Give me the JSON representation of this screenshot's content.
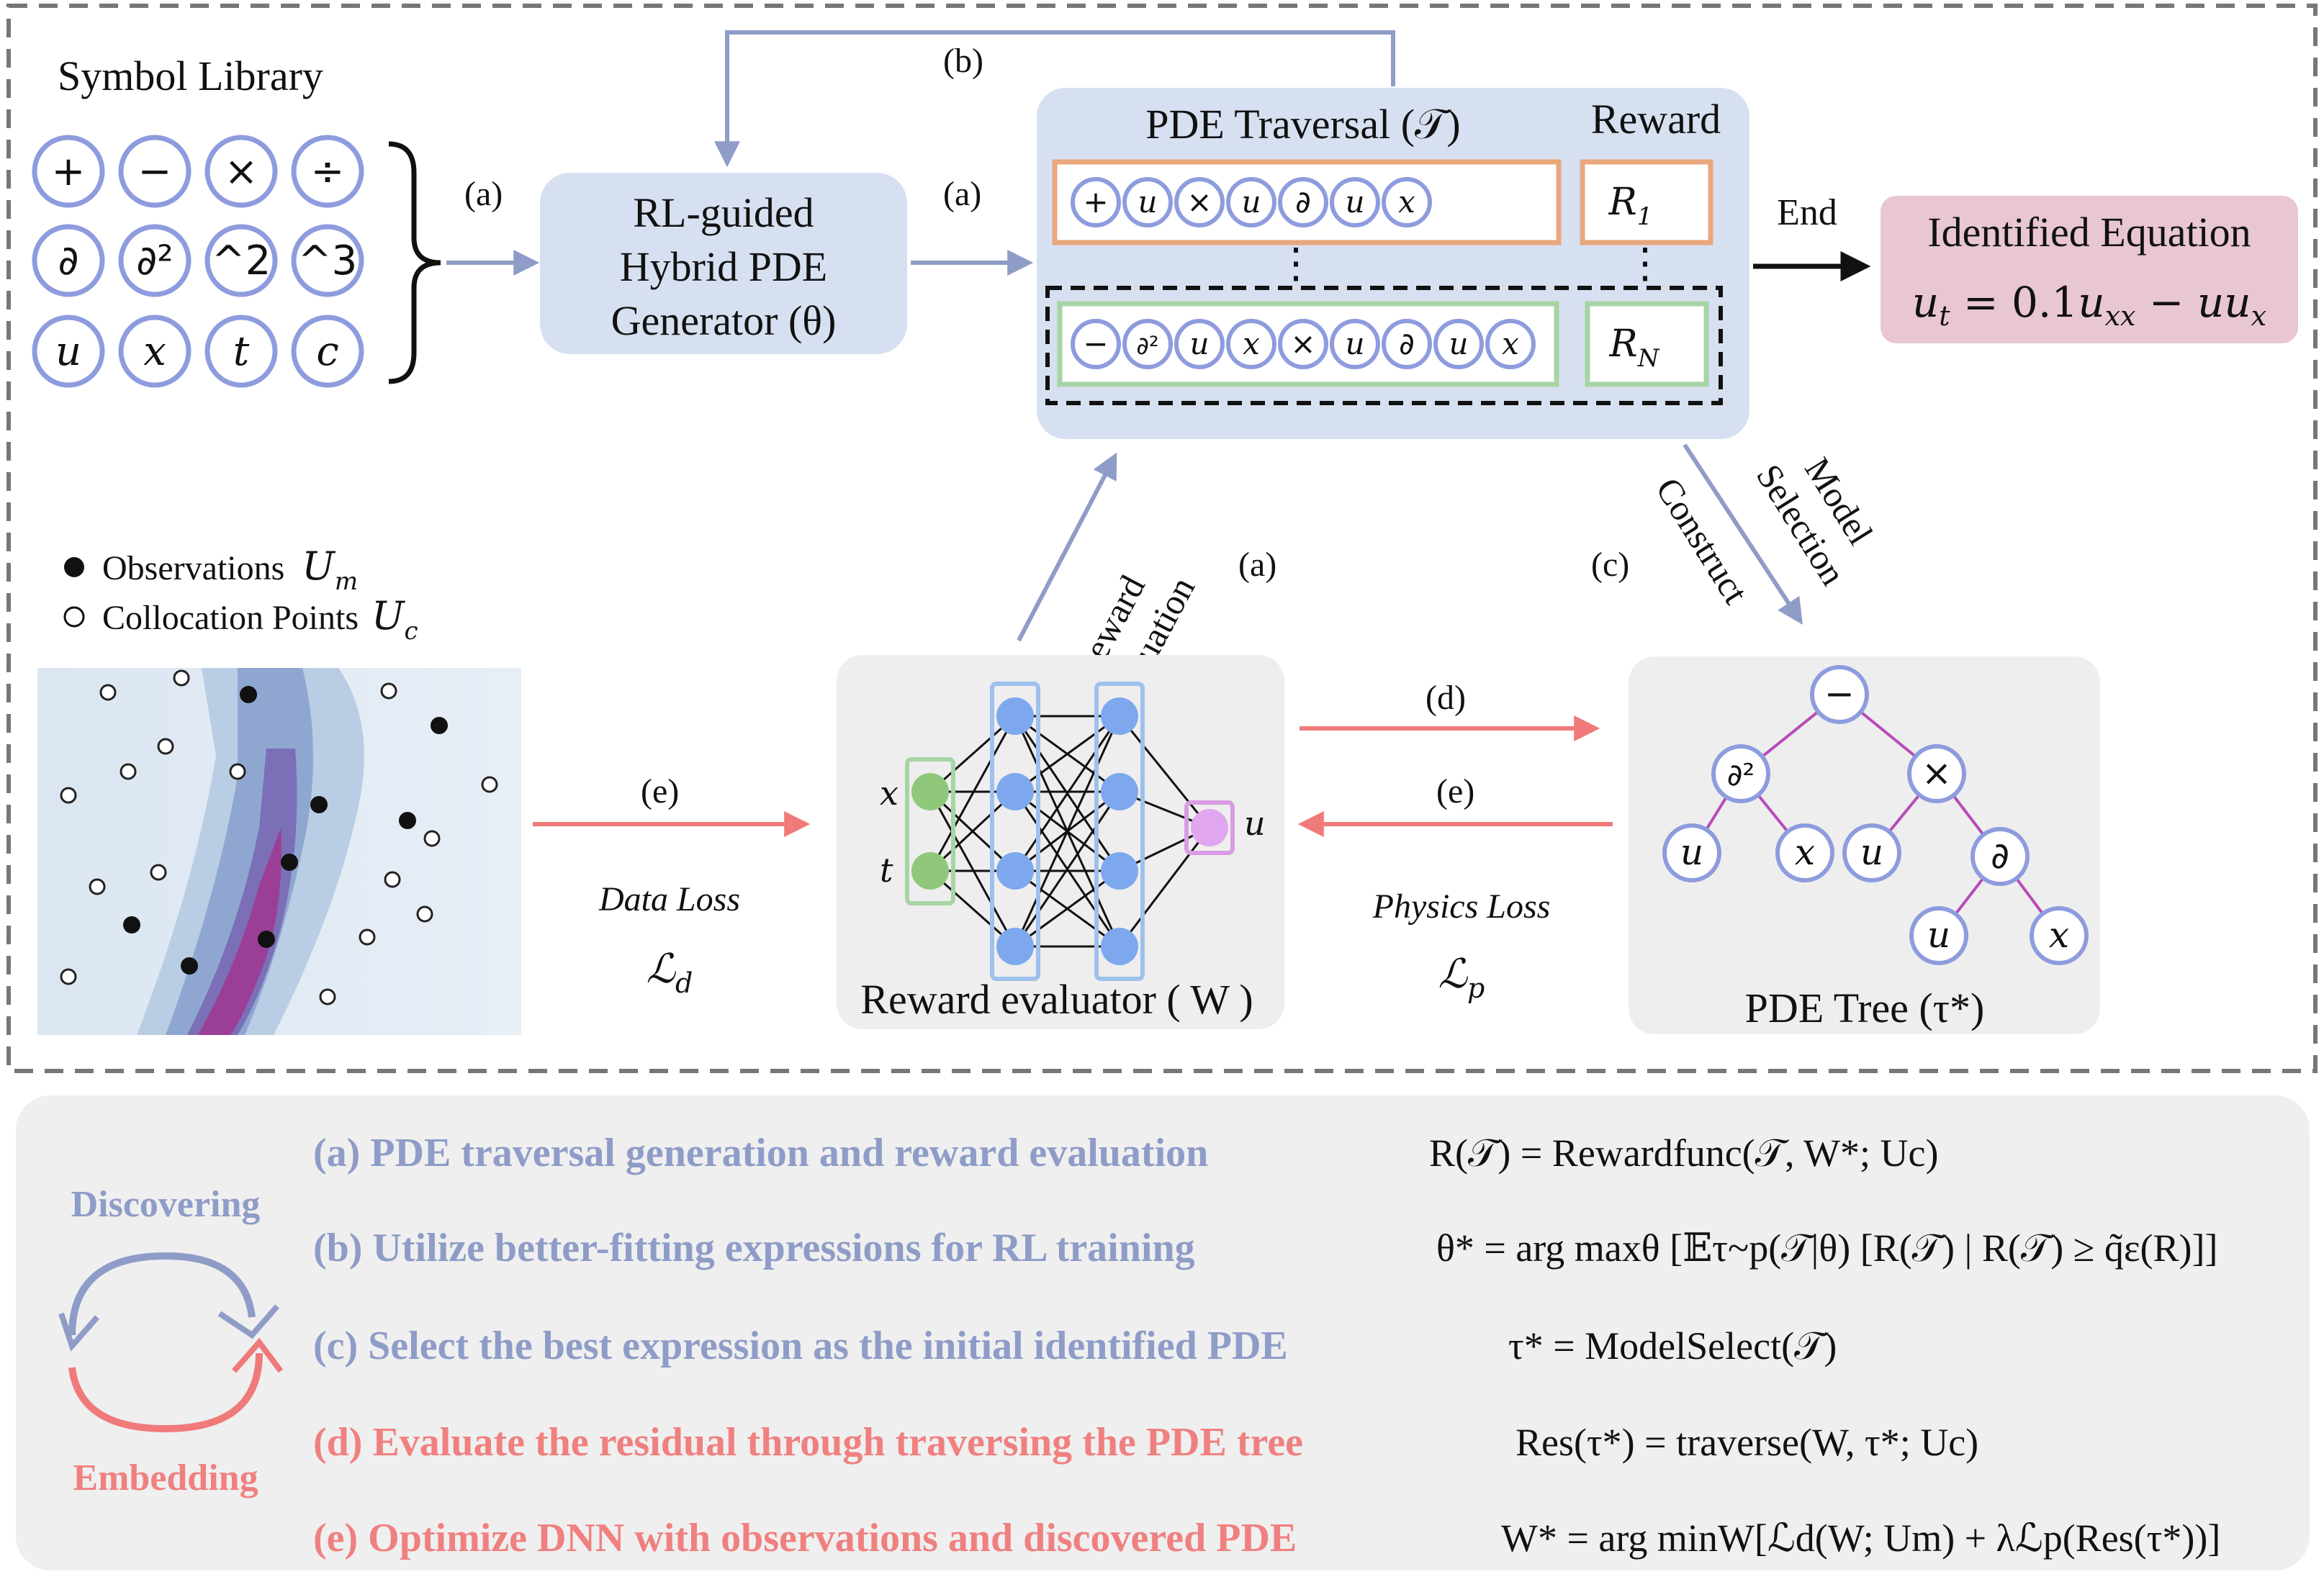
{
  "symbol_library": {
    "title": "Symbol Library",
    "symbols": [
      "+",
      "−",
      "×",
      "÷",
      "∂",
      "∂²",
      "^2",
      "^3",
      "u",
      "x",
      "t",
      "c"
    ]
  },
  "generator": {
    "line1": "RL-guided",
    "line2": "Hybrid PDE",
    "line3": "Generator (θ)"
  },
  "labels": {
    "a": "(a)",
    "b": "(b)",
    "c": "(c)",
    "d": "(d)",
    "e": "(e)",
    "end": "End",
    "reward_eval_1": "Reward",
    "reward_eval_2": "Evaluation",
    "model_sel_1": "Model",
    "model_sel_2": "Selection",
    "construct": "Construct",
    "data_loss": "Data Loss",
    "data_loss_sym": "ℒd",
    "physics_loss": "Physics Loss",
    "physics_loss_sym": "ℒp"
  },
  "traversal": {
    "title": "PDE Traversal (𝒯)",
    "reward_title": "Reward",
    "seq1": [
      "+",
      "u",
      "×",
      "u",
      "∂",
      "u",
      "x"
    ],
    "seq2": [
      "−",
      "∂²",
      "u",
      "x",
      "×",
      "u",
      "∂",
      "u",
      "x"
    ],
    "r1": "R1",
    "rn": "RN",
    "r1_main": "R",
    "r1_sub": "1",
    "rn_main": "R",
    "rn_sub": "N"
  },
  "identified": {
    "title": "Identified Equation",
    "equation": "ut = 0.1uxx − uux"
  },
  "observations": {
    "obs_label": "Observations",
    "obs_sym": "Um",
    "col_label": "Collocation Points",
    "col_sym": "Uc"
  },
  "evaluator": {
    "title": "Reward evaluator ( W )",
    "in_x": "x",
    "in_t": "t",
    "out_u": "u"
  },
  "tree": {
    "title": "PDE Tree (τ*)",
    "nodes": [
      "−",
      "∂²",
      "×",
      "u",
      "x",
      "u",
      "∂",
      "u",
      "x"
    ]
  },
  "bottom": {
    "discovering": "Discovering",
    "embedding": "Embedding",
    "steps": [
      {
        "text": "(a) PDE traversal generation and reward evaluation",
        "formula": "R(𝒯) = Rewardfunc(𝒯, W*; Uc)",
        "color": "blue"
      },
      {
        "text": "(b) Utilize better-fitting expressions for RL training",
        "formula": "θ* = arg maxθ [𝔼τ~p(𝒯|θ) [R(𝒯) | R(𝒯) ≥ q̃ε(R)]]",
        "color": "blue"
      },
      {
        "text": "(c) Select the best expression as the initial identified PDE",
        "formula": "τ* = ModelSelect(𝒯)",
        "color": "blue"
      },
      {
        "text": "(d) Evaluate the residual through traversing the PDE tree",
        "formula": "Res(τ*) = traverse(W, τ*; Uc)",
        "color": "red"
      },
      {
        "text": "(e) Optimize DNN with observations and discovered PDE",
        "formula": "W* = arg minW[ℒd(W; Um) + λℒp(Res(τ*))]",
        "color": "red"
      }
    ]
  },
  "colors": {
    "blue_circle": "#8e9cde",
    "box_blue": "#d7e0f0",
    "orange": "#e8a77c",
    "green": "#a7d4a4",
    "pink_box": "#e8c6d2",
    "red_arrow": "#f07a7a",
    "gray_arrow": "#8e9cc7",
    "legend_bg": "#efefef"
  }
}
